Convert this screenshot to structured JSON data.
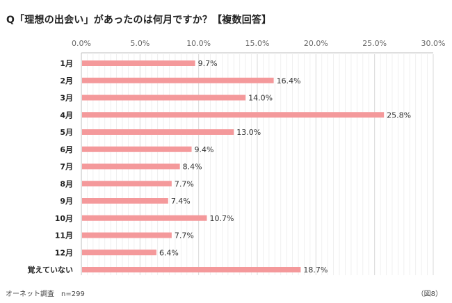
{
  "title": "Q「理想の出会い」があったのは何月ですか？【複数回答】",
  "footer": {
    "source": "オーネット調査　n=299",
    "figure_label": "（図8）"
  },
  "colors": {
    "bar": "#f4999b",
    "grid": "#d9d9d9",
    "axis": "#bfbfbf",
    "text": "#333333"
  },
  "chart_data": {
    "type": "bar",
    "orientation": "horizontal",
    "title": "",
    "xlabel": "",
    "ylabel": "",
    "xlim": [
      0,
      30
    ],
    "x_ticks": [
      "0.0%",
      "5.0%",
      "10.0%",
      "15.0%",
      "20.0%",
      "25.0%",
      "30.0%"
    ],
    "x_axis_position": "top",
    "grid": true,
    "categories": [
      "1月",
      "2月",
      "3月",
      "4月",
      "5月",
      "6月",
      "7月",
      "8月",
      "9月",
      "10月",
      "11月",
      "12月",
      "覚えていない"
    ],
    "values": [
      9.7,
      16.4,
      14.0,
      25.8,
      13.0,
      9.4,
      8.4,
      7.7,
      7.4,
      10.7,
      7.7,
      6.4,
      18.7
    ],
    "value_labels": [
      "9.7%",
      "16.4%",
      "14.0%",
      "25.8%",
      "13.0%",
      "9.4%",
      "8.4%",
      "7.7%",
      "7.4%",
      "10.7%",
      "7.7%",
      "6.4%",
      "18.7%"
    ]
  }
}
